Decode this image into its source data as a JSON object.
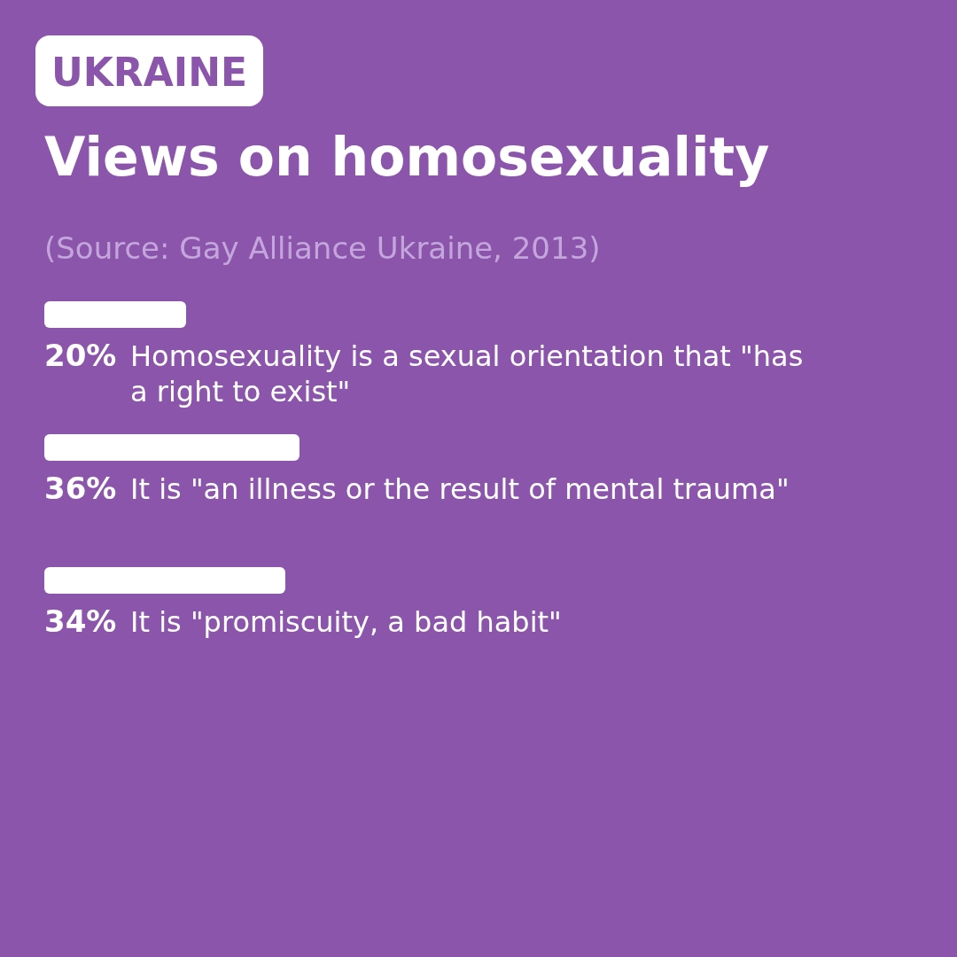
{
  "chart_data": {
    "type": "bar",
    "orientation": "horizontal",
    "subtitle": "UKRAINE",
    "title": "Views on homosexuality",
    "annotations": [
      "(Source: Gay Alliance Ukraine, 2013)"
    ],
    "categories": [
      "Homosexuality is a sexual orientation that \"has a right to exist\"",
      "It is \"an illness or the result of mental trauma\"",
      "It is \"promiscuity, a bad habit\""
    ],
    "values": [
      20,
      36,
      34
    ],
    "value_labels": [
      "20%",
      "36%",
      "34%"
    ],
    "color": "#ffffff",
    "tick_labels": false
  }
}
